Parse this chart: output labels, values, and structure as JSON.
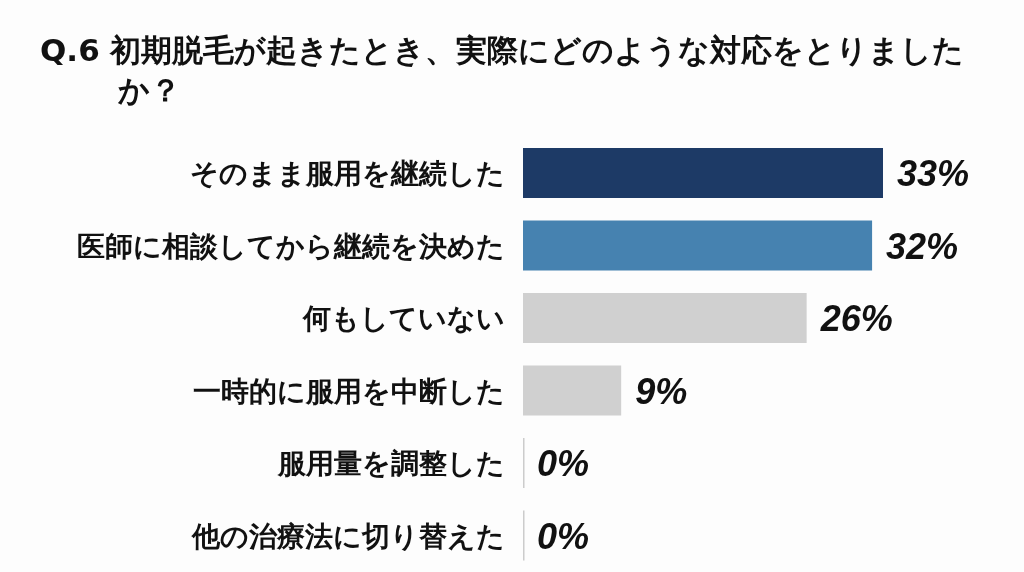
{
  "chart_data": {
    "type": "bar",
    "orientation": "horizontal",
    "title": "Q.6 初期脱毛が起きたとき、実際にどのような対応をとりましたか？",
    "categories": [
      "そのまま服用を継続した",
      "医師に相談してから継続を決めた",
      "何もしていない",
      "一時的に服用を中断した",
      "服用量を調整した",
      "他の治療法に切り替えた"
    ],
    "values": [
      33,
      32,
      26,
      9,
      0,
      0
    ],
    "colors": [
      "#1d3a66",
      "#4682b0",
      "#d0d0d0",
      "#d0d0d0",
      "#cccccc",
      "#cccccc"
    ],
    "value_labels": [
      "33%",
      "32%",
      "26%",
      "9%",
      "0%",
      "0%"
    ]
  }
}
